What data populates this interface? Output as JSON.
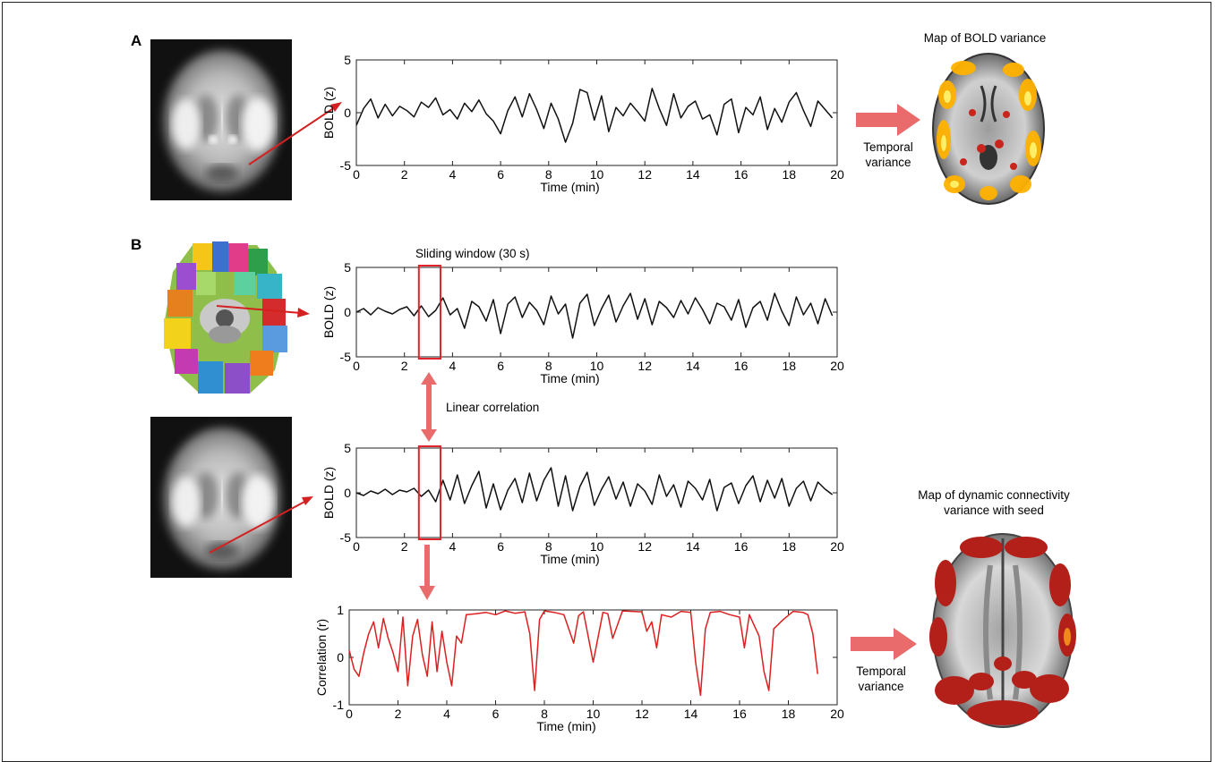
{
  "panel_a": {
    "letter": "A",
    "brain_image": "fmri-axial-slice-grayscale",
    "map_title": "Map of BOLD variance",
    "map_image": "bold-variance-map-hot",
    "arrow_caption": "Temporal\nvariance"
  },
  "panel_b": {
    "letter": "B",
    "atlas_image": "parcellation-atlas-colored",
    "seed_brain_image": "fmri-axial-slice-grayscale",
    "window_label": "Sliding window (30 s)",
    "corr_label": "Linear correlation",
    "map_title": "Map of dynamic connectivity\nvariance with seed",
    "map_image": "dynamic-connectivity-variance-map-red",
    "arrow_caption": "Temporal\nvariance"
  },
  "colors": {
    "arrow": "#e86a6a",
    "window_box": "#e0242a",
    "correlation_trace": "#dd1f1f",
    "bold_trace": "#111111"
  },
  "chart_data": [
    {
      "id": "bold-a",
      "type": "line",
      "xlabel": "Time (min)",
      "ylabel": "BOLD (z)",
      "xlim": [
        0,
        20
      ],
      "ylim": [
        -5,
        5
      ],
      "xticks": [
        0,
        2,
        4,
        6,
        8,
        10,
        12,
        14,
        16,
        18,
        20
      ],
      "yticks": [
        -5,
        0,
        5
      ],
      "line_color": "#111111",
      "x": [
        0,
        0.3,
        0.6,
        0.9,
        1.2,
        1.5,
        1.8,
        2.1,
        2.4,
        2.7,
        3.0,
        3.3,
        3.6,
        3.9,
        4.2,
        4.5,
        4.8,
        5.1,
        5.4,
        5.7,
        6.0,
        6.3,
        6.6,
        6.9,
        7.2,
        7.5,
        7.8,
        8.1,
        8.4,
        8.7,
        9.0,
        9.3,
        9.6,
        9.9,
        10.2,
        10.5,
        10.8,
        11.1,
        11.4,
        11.7,
        12.0,
        12.3,
        12.6,
        12.9,
        13.2,
        13.5,
        13.8,
        14.1,
        14.4,
        14.7,
        15.0,
        15.3,
        15.6,
        15.9,
        16.2,
        16.5,
        16.8,
        17.1,
        17.4,
        17.7,
        18.0,
        18.3,
        18.6,
        18.9,
        19.2,
        19.5,
        19.8
      ],
      "y": [
        -1.2,
        0.4,
        1.3,
        -0.5,
        0.8,
        -0.3,
        0.6,
        0.2,
        -0.4,
        1.0,
        0.5,
        1.4,
        -0.2,
        0.3,
        -0.6,
        0.9,
        0.1,
        1.2,
        -0.1,
        -0.8,
        -2.0,
        0.2,
        1.5,
        -0.4,
        1.8,
        0.3,
        -1.5,
        0.9,
        -0.6,
        -2.8,
        -1.0,
        2.2,
        1.9,
        -0.7,
        1.6,
        -1.8,
        0.5,
        -0.3,
        0.9,
        0.1,
        -0.8,
        2.3,
        0.4,
        -1.2,
        1.8,
        -0.5,
        0.6,
        1.1,
        -0.6,
        -0.2,
        -2.1,
        0.8,
        1.3,
        -1.9,
        0.5,
        -0.2,
        1.5,
        -1.6,
        0.4,
        -0.9,
        1.0,
        1.9,
        0.2,
        -1.3,
        1.1,
        0.3,
        -0.5
      ]
    },
    {
      "id": "bold-b1",
      "type": "line",
      "xlabel": "Time (min)",
      "ylabel": "BOLD (z)",
      "xlim": [
        0,
        20
      ],
      "ylim": [
        -5,
        5
      ],
      "xticks": [
        0,
        2,
        4,
        6,
        8,
        10,
        12,
        14,
        16,
        18,
        20
      ],
      "yticks": [
        -5,
        0,
        5
      ],
      "line_color": "#111111",
      "window": [
        2.6,
        3.5
      ],
      "x": [
        0,
        0.3,
        0.6,
        0.9,
        1.2,
        1.5,
        1.8,
        2.1,
        2.4,
        2.7,
        3.0,
        3.3,
        3.6,
        3.9,
        4.2,
        4.5,
        4.8,
        5.1,
        5.4,
        5.7,
        6.0,
        6.3,
        6.6,
        6.9,
        7.2,
        7.5,
        7.8,
        8.1,
        8.4,
        8.7,
        9.0,
        9.3,
        9.6,
        9.9,
        10.2,
        10.5,
        10.8,
        11.1,
        11.4,
        11.7,
        12.0,
        12.3,
        12.6,
        12.9,
        13.2,
        13.5,
        13.8,
        14.1,
        14.4,
        14.7,
        15.0,
        15.3,
        15.6,
        15.9,
        16.2,
        16.5,
        16.8,
        17.1,
        17.4,
        17.7,
        18.0,
        18.3,
        18.6,
        18.9,
        19.2,
        19.5,
        19.8
      ],
      "y": [
        0.0,
        0.4,
        -0.3,
        0.5,
        0.1,
        -0.2,
        0.3,
        0.6,
        -0.4,
        0.7,
        -0.5,
        0.2,
        1.6,
        -0.3,
        0.4,
        -1.8,
        1.2,
        0.6,
        -1.0,
        1.4,
        -2.4,
        0.9,
        1.7,
        -0.6,
        1.1,
        0.2,
        -1.4,
        1.8,
        -0.2,
        0.9,
        -2.9,
        1.0,
        2.0,
        -1.5,
        0.4,
        1.9,
        -1.1,
        0.7,
        2.1,
        -0.8,
        1.5,
        -1.4,
        1.2,
        0.5,
        -0.6,
        1.3,
        -0.2,
        1.6,
        0.3,
        -1.3,
        1.0,
        0.6,
        -0.9,
        1.4,
        -1.7,
        0.5,
        1.2,
        -0.9,
        2.1,
        0.1,
        -1.5,
        1.7,
        -0.3,
        1.0,
        -1.3,
        1.5,
        -0.4
      ]
    },
    {
      "id": "bold-b2",
      "type": "line",
      "xlabel": "Time (min)",
      "ylabel": "BOLD (z)",
      "xlim": [
        0,
        20
      ],
      "ylim": [
        -5,
        5
      ],
      "xticks": [
        0,
        2,
        4,
        6,
        8,
        10,
        12,
        14,
        16,
        18,
        20
      ],
      "yticks": [
        -5,
        0,
        5
      ],
      "line_color": "#111111",
      "window": [
        2.6,
        3.5
      ],
      "x": [
        0,
        0.3,
        0.6,
        0.9,
        1.2,
        1.5,
        1.8,
        2.1,
        2.4,
        2.7,
        3.0,
        3.3,
        3.6,
        3.9,
        4.2,
        4.5,
        4.8,
        5.1,
        5.4,
        5.7,
        6.0,
        6.3,
        6.6,
        6.9,
        7.2,
        7.5,
        7.8,
        8.1,
        8.4,
        8.7,
        9.0,
        9.3,
        9.6,
        9.9,
        10.2,
        10.5,
        10.8,
        11.1,
        11.4,
        11.7,
        12.0,
        12.3,
        12.6,
        12.9,
        13.2,
        13.5,
        13.8,
        14.1,
        14.4,
        14.7,
        15.0,
        15.3,
        15.6,
        15.9,
        16.2,
        16.5,
        16.8,
        17.1,
        17.4,
        17.7,
        18.0,
        18.3,
        18.6,
        18.9,
        19.2,
        19.5,
        19.8
      ],
      "y": [
        0.0,
        -0.3,
        0.2,
        -0.1,
        0.4,
        -0.2,
        0.3,
        0.1,
        0.5,
        -0.4,
        0.3,
        -1.0,
        1.4,
        -0.8,
        2.0,
        -1.2,
        0.8,
        2.4,
        -1.7,
        1.0,
        -1.9,
        0.3,
        1.6,
        -1.1,
        2.2,
        -0.9,
        1.4,
        2.8,
        -1.5,
        1.9,
        -2.0,
        0.7,
        2.3,
        -1.4,
        0.4,
        1.8,
        -0.7,
        1.2,
        -1.5,
        1.0,
        0.2,
        -1.3,
        2.0,
        -0.4,
        0.9,
        -1.6,
        1.3,
        0.5,
        -0.8,
        1.5,
        -2.0,
        0.6,
        1.1,
        -1.2,
        0.8,
        1.9,
        -1.0,
        1.4,
        -0.6,
        1.6,
        -1.5,
        0.5,
        1.3,
        -0.9,
        1.2,
        0.4,
        -0.2
      ]
    },
    {
      "id": "corr-b",
      "type": "line",
      "xlabel": "Time (min)",
      "ylabel": "Correlation (r)",
      "xlim": [
        0,
        20
      ],
      "ylim": [
        -1,
        1
      ],
      "xticks": [
        0,
        2,
        4,
        6,
        8,
        10,
        12,
        14,
        16,
        18,
        20
      ],
      "yticks": [
        -1,
        0,
        1
      ],
      "line_color": "#dd1f1f",
      "x": [
        0,
        0.2,
        0.4,
        0.6,
        0.8,
        1.0,
        1.2,
        1.4,
        1.6,
        1.8,
        2.0,
        2.2,
        2.4,
        2.6,
        2.8,
        3.0,
        3.2,
        3.4,
        3.6,
        3.8,
        4.0,
        4.2,
        4.4,
        4.6,
        4.8,
        5.2,
        5.6,
        6.0,
        6.4,
        6.8,
        7.2,
        7.4,
        7.6,
        7.8,
        8.0,
        8.4,
        8.8,
        9.2,
        9.4,
        9.6,
        10.0,
        10.4,
        10.6,
        10.8,
        11.2,
        11.6,
        12.0,
        12.2,
        12.4,
        12.6,
        12.8,
        13.2,
        13.6,
        14.0,
        14.2,
        14.4,
        14.6,
        14.8,
        15.2,
        15.6,
        16.0,
        16.2,
        16.4,
        16.8,
        17.0,
        17.2,
        17.4,
        17.8,
        18.2,
        18.6,
        18.8,
        19.0,
        19.2
      ],
      "y": [
        0.15,
        -0.25,
        -0.4,
        0.1,
        0.5,
        0.75,
        0.2,
        0.82,
        0.4,
        0.1,
        -0.3,
        0.85,
        -0.6,
        0.45,
        0.8,
        0.05,
        -0.4,
        0.75,
        -0.3,
        0.55,
        -0.1,
        -0.6,
        0.45,
        0.3,
        0.9,
        0.92,
        0.95,
        0.9,
        0.98,
        0.93,
        0.96,
        0.5,
        -0.7,
        0.8,
        0.98,
        0.95,
        0.9,
        0.3,
        0.88,
        0.96,
        -0.1,
        0.95,
        0.92,
        0.4,
        0.98,
        0.97,
        0.96,
        0.55,
        0.75,
        0.2,
        0.9,
        0.85,
        0.97,
        0.95,
        -0.1,
        -0.8,
        0.6,
        0.95,
        0.97,
        0.9,
        0.85,
        0.2,
        0.9,
        0.45,
        -0.3,
        -0.7,
        0.6,
        0.8,
        0.97,
        0.95,
        0.9,
        0.5,
        -0.35
      ]
    }
  ]
}
